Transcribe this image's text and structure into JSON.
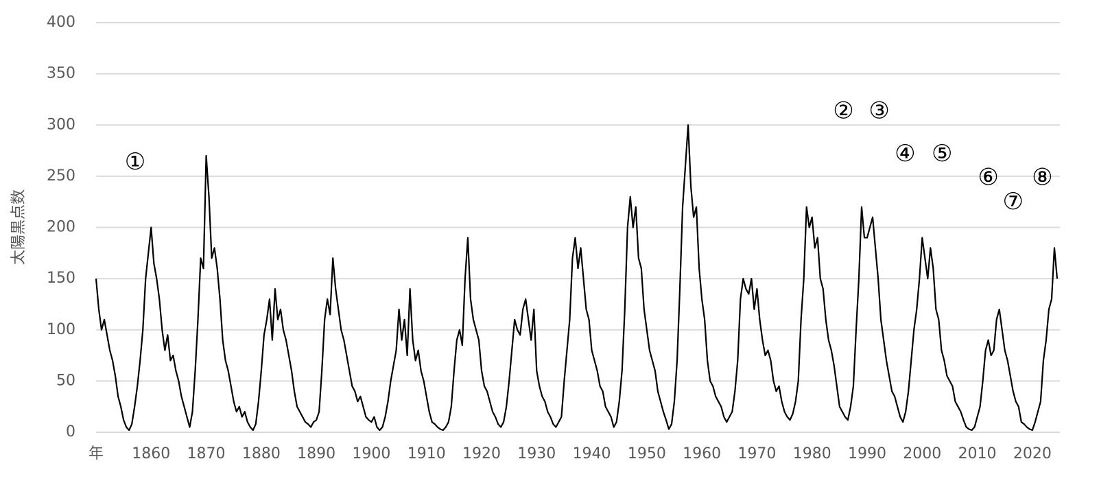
{
  "chart_data": {
    "type": "line",
    "y_label": "太陽黒点数",
    "x_label": "年",
    "xlim": [
      1850,
      2025
    ],
    "xticks": [
      1860,
      1870,
      1880,
      1890,
      1900,
      1910,
      1920,
      1930,
      1940,
      1950,
      1960,
      1970,
      1980,
      1990,
      2000,
      2010,
      2020
    ],
    "ylim": [
      0,
      400
    ],
    "yticks": [
      0,
      50,
      100,
      150,
      200,
      250,
      300,
      350,
      400
    ],
    "grid": true,
    "x": [
      1850,
      1850.5,
      1851,
      1851.5,
      1852,
      1852.5,
      1853,
      1853.5,
      1854,
      1854.5,
      1855,
      1855.5,
      1856,
      1856.5,
      1857,
      1857.5,
      1858,
      1858.5,
      1859,
      1859.5,
      1860,
      1860.5,
      1861,
      1861.5,
      1862,
      1862.5,
      1863,
      1863.5,
      1864,
      1864.5,
      1865,
      1865.5,
      1866,
      1866.5,
      1867,
      1867.5,
      1868,
      1868.5,
      1869,
      1869.5,
      1870,
      1870.5,
      1871,
      1871.5,
      1872,
      1872.5,
      1873,
      1873.5,
      1874,
      1874.5,
      1875,
      1875.5,
      1876,
      1876.5,
      1877,
      1877.5,
      1878,
      1878.5,
      1879,
      1879.5,
      1880,
      1880.5,
      1881,
      1881.5,
      1882,
      1882.5,
      1883,
      1883.5,
      1884,
      1884.5,
      1885,
      1885.5,
      1886,
      1886.5,
      1887,
      1887.5,
      1888,
      1888.5,
      1889,
      1889.5,
      1890,
      1890.5,
      1891,
      1891.5,
      1892,
      1892.5,
      1893,
      1893.5,
      1894,
      1894.5,
      1895,
      1895.5,
      1896,
      1896.5,
      1897,
      1897.5,
      1898,
      1898.5,
      1899,
      1899.5,
      1900,
      1900.5,
      1901,
      1901.5,
      1902,
      1902.5,
      1903,
      1903.5,
      1904,
      1904.5,
      1905,
      1905.5,
      1906,
      1906.5,
      1907,
      1907.5,
      1908,
      1908.5,
      1909,
      1909.5,
      1910,
      1910.5,
      1911,
      1911.5,
      1912,
      1912.5,
      1913,
      1913.5,
      1914,
      1914.5,
      1915,
      1915.5,
      1916,
      1916.5,
      1917,
      1917.5,
      1918,
      1918.5,
      1919,
      1919.5,
      1920,
      1920.5,
      1921,
      1921.5,
      1922,
      1922.5,
      1923,
      1923.5,
      1924,
      1924.5,
      1925,
      1925.5,
      1926,
      1926.5,
      1927,
      1927.5,
      1928,
      1928.5,
      1929,
      1929.5,
      1930,
      1930.5,
      1931,
      1931.5,
      1932,
      1932.5,
      1933,
      1933.5,
      1934,
      1934.5,
      1935,
      1935.5,
      1936,
      1936.5,
      1937,
      1937.5,
      1938,
      1938.5,
      1939,
      1939.5,
      1940,
      1940.5,
      1941,
      1941.5,
      1942,
      1942.5,
      1943,
      1943.5,
      1944,
      1944.5,
      1945,
      1945.5,
      1946,
      1946.5,
      1947,
      1947.5,
      1948,
      1948.5,
      1949,
      1949.5,
      1950,
      1950.5,
      1951,
      1951.5,
      1952,
      1952.5,
      1953,
      1953.5,
      1954,
      1954.5,
      1955,
      1955.5,
      1956,
      1956.5,
      1957,
      1957.5,
      1958,
      1958.5,
      1959,
      1959.5,
      1960,
      1960.5,
      1961,
      1961.5,
      1962,
      1962.5,
      1963,
      1963.5,
      1964,
      1964.5,
      1965,
      1965.5,
      1966,
      1966.5,
      1967,
      1967.5,
      1968,
      1968.5,
      1969,
      1969.5,
      1970,
      1970.5,
      1971,
      1971.5,
      1972,
      1972.5,
      1973,
      1973.5,
      1974,
      1974.5,
      1975,
      1975.5,
      1976,
      1976.5,
      1977,
      1977.5,
      1978,
      1978.5,
      1979,
      1979.5,
      1980,
      1980.5,
      1981,
      1981.5,
      1982,
      1982.5,
      1983,
      1983.5,
      1984,
      1984.5,
      1985,
      1985.5,
      1986,
      1986.5,
      1987,
      1987.5,
      1988,
      1988.5,
      1989,
      1989.5,
      1990,
      1990.5,
      1991,
      1991.5,
      1992,
      1992.5,
      1993,
      1993.5,
      1994,
      1994.5,
      1995,
      1995.5,
      1996,
      1996.5,
      1997,
      1997.5,
      1998,
      1998.5,
      1999,
      1999.5,
      2000,
      2000.5,
      2001,
      2001.5,
      2002,
      2002.5,
      2003,
      2003.5,
      2004,
      2004.5,
      2005,
      2005.5,
      2006,
      2006.5,
      2007,
      2007.5,
      2008,
      2008.5,
      2009,
      2009.5,
      2010,
      2010.5,
      2011,
      2011.5,
      2012,
      2012.5,
      2013,
      2013.5,
      2014,
      2014.5,
      2015,
      2015.5,
      2016,
      2016.5,
      2017,
      2017.5,
      2018,
      2018.5,
      2019,
      2019.5,
      2020,
      2020.5,
      2021,
      2021.5,
      2022,
      2022.5,
      2023,
      2023.5,
      2024,
      2024.5
    ],
    "series": [
      {
        "color": "#000000",
        "values": [
          150,
          120,
          100,
          110,
          95,
          80,
          70,
          55,
          35,
          25,
          12,
          5,
          2,
          8,
          25,
          45,
          70,
          100,
          150,
          175,
          200,
          165,
          150,
          130,
          100,
          80,
          95,
          70,
          75,
          60,
          50,
          35,
          25,
          15,
          5,
          20,
          60,
          110,
          170,
          160,
          270,
          230,
          170,
          180,
          160,
          130,
          90,
          70,
          60,
          45,
          30,
          20,
          25,
          15,
          20,
          10,
          5,
          2,
          8,
          30,
          60,
          95,
          110,
          130,
          90,
          140,
          110,
          120,
          100,
          90,
          75,
          60,
          40,
          25,
          20,
          15,
          10,
          8,
          5,
          10,
          12,
          20,
          60,
          110,
          130,
          115,
          170,
          140,
          120,
          100,
          90,
          75,
          60,
          45,
          40,
          30,
          35,
          25,
          15,
          12,
          10,
          15,
          5,
          2,
          5,
          15,
          30,
          50,
          65,
          80,
          120,
          90,
          110,
          75,
          140,
          90,
          70,
          80,
          60,
          50,
          35,
          20,
          10,
          8,
          5,
          3,
          2,
          5,
          10,
          25,
          60,
          90,
          100,
          85,
          150,
          190,
          130,
          110,
          100,
          90,
          60,
          45,
          40,
          30,
          20,
          15,
          8,
          5,
          10,
          25,
          50,
          80,
          110,
          100,
          95,
          120,
          130,
          110,
          90,
          120,
          60,
          45,
          35,
          30,
          20,
          15,
          8,
          5,
          10,
          15,
          50,
          80,
          110,
          170,
          190,
          160,
          180,
          150,
          120,
          110,
          80,
          70,
          60,
          45,
          40,
          25,
          20,
          15,
          5,
          10,
          30,
          60,
          120,
          200,
          230,
          200,
          220,
          170,
          160,
          120,
          100,
          80,
          70,
          60,
          40,
          30,
          20,
          12,
          3,
          8,
          30,
          70,
          140,
          220,
          260,
          300,
          240,
          210,
          220,
          160,
          130,
          110,
          70,
          50,
          45,
          35,
          30,
          25,
          15,
          10,
          15,
          20,
          40,
          70,
          130,
          150,
          140,
          135,
          150,
          120,
          140,
          110,
          90,
          75,
          80,
          70,
          50,
          40,
          45,
          30,
          20,
          15,
          12,
          18,
          30,
          50,
          110,
          150,
          220,
          200,
          210,
          180,
          190,
          150,
          140,
          110,
          90,
          80,
          65,
          45,
          25,
          20,
          15,
          12,
          25,
          45,
          100,
          150,
          220,
          190,
          190,
          200,
          210,
          180,
          150,
          110,
          90,
          70,
          55,
          40,
          35,
          25,
          15,
          10,
          20,
          40,
          70,
          100,
          120,
          150,
          190,
          170,
          150,
          180,
          160,
          120,
          110,
          80,
          70,
          55,
          50,
          45,
          30,
          25,
          20,
          12,
          5,
          3,
          2,
          5,
          15,
          25,
          50,
          80,
          90,
          75,
          80,
          110,
          120,
          100,
          80,
          70,
          55,
          40,
          30,
          25,
          10,
          8,
          5,
          3,
          2,
          10,
          20,
          30,
          70,
          90,
          120,
          130,
          180,
          150
        ]
      }
    ],
    "annotations": [
      {
        "text": "①",
        "x": 1857.1,
        "y": 263
      },
      {
        "text": "②",
        "x": 1985.7,
        "y": 313
      },
      {
        "text": "③",
        "x": 1992.2,
        "y": 313
      },
      {
        "text": "④",
        "x": 1996.9,
        "y": 271
      },
      {
        "text": "⑤",
        "x": 2003.6,
        "y": 271
      },
      {
        "text": "⑥",
        "x": 2012.0,
        "y": 248
      },
      {
        "text": "⑦",
        "x": 2016.5,
        "y": 224
      },
      {
        "text": "⑧",
        "x": 2021.8,
        "y": 248
      }
    ]
  }
}
